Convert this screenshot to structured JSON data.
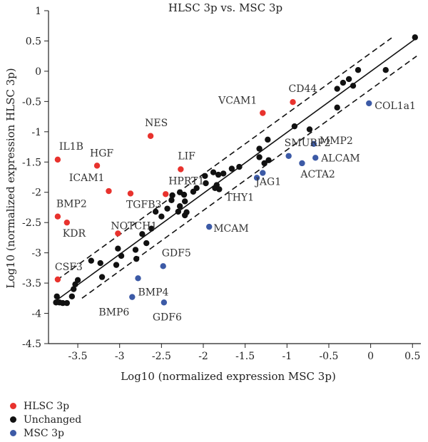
{
  "chart_data": {
    "type": "scatter",
    "title": "HLSC 3p vs. MSC 3p",
    "xlabel": "Log10 (normalized expression MSC 3p)",
    "ylabel": "Log10 (normalized expression HLSC 3p)",
    "xlim": [
      -3.85,
      0.6
    ],
    "ylim": [
      -4.5,
      1
    ],
    "x_ticks": [
      "-3.5",
      "-3",
      "-2.5",
      "-2",
      "-1.5",
      "-1",
      "-0.5",
      "0",
      "0.5"
    ],
    "x_tick_values": [
      -3.5,
      -3,
      -2.5,
      -2,
      -1.5,
      -1,
      -0.5,
      0,
      0.5
    ],
    "y_ticks": [
      "1",
      "0.5",
      "0",
      "-0.5",
      "-1",
      "-1.5",
      "-2",
      "-2.5",
      "-3",
      "-3.5",
      "-4",
      "-4.5"
    ],
    "y_tick_values": [
      1,
      0.5,
      0,
      -0.5,
      -1,
      -1.5,
      -2,
      -2.5,
      -3,
      -3.5,
      -4,
      -4.5
    ],
    "reference_lines": [
      {
        "style": "solid",
        "from": [
          -3.75,
          -3.78
        ],
        "to": [
          0.55,
          0.55
        ]
      },
      {
        "style": "dashed",
        "from": [
          -3.75,
          -3.45
        ],
        "to": [
          0.25,
          0.55
        ]
      },
      {
        "style": "dashed",
        "from": [
          -3.45,
          -3.75
        ],
        "to": [
          0.55,
          0.25
        ]
      }
    ],
    "colors": {
      "HLSC 3p": "#e8322d",
      "Unchanged": "#111111",
      "MSC 3p": "#3c5aa6"
    },
    "series": [
      {
        "name": "HLSC 3p",
        "points": [
          {
            "x": -3.74,
            "y": -1.46,
            "label": "IL1B"
          },
          {
            "x": -3.27,
            "y": -1.56,
            "label": "HGF"
          },
          {
            "x": -2.63,
            "y": -1.07,
            "label": "NES"
          },
          {
            "x": -3.13,
            "y": -1.98,
            "label": "ICAM1"
          },
          {
            "x": -2.87,
            "y": -2.02,
            "label": "TGFB3"
          },
          {
            "x": -2.27,
            "y": -1.62,
            "label": "LIF"
          },
          {
            "x": -2.45,
            "y": -2.03,
            "label": "HPRT1"
          },
          {
            "x": -3.74,
            "y": -2.4,
            "label": "BMP2"
          },
          {
            "x": -3.63,
            "y": -2.5,
            "label": "KDR"
          },
          {
            "x": -3.02,
            "y": -2.68,
            "label": "NOTCH1"
          },
          {
            "x": -3.74,
            "y": -3.44,
            "label": "CSF3"
          },
          {
            "x": -1.29,
            "y": -0.69,
            "label": "VCAM1"
          },
          {
            "x": -0.93,
            "y": -0.51,
            "label": "CD44"
          }
        ]
      },
      {
        "name": "MSC 3p",
        "points": [
          {
            "x": -0.02,
            "y": -0.53,
            "label": "COL1a1"
          },
          {
            "x": -0.68,
            "y": -1.2,
            "label": "MMP2"
          },
          {
            "x": -0.66,
            "y": -1.43,
            "label": "ALCAM"
          },
          {
            "x": -0.98,
            "y": -1.4,
            "label": "SMURF2"
          },
          {
            "x": -0.82,
            "y": -1.52,
            "label": "ACTA2"
          },
          {
            "x": -1.29,
            "y": -1.68,
            "label": "JAG1"
          },
          {
            "x": -1.36,
            "y": -1.76,
            "label": "THY1"
          },
          {
            "x": -1.93,
            "y": -2.57,
            "label": "MCAM"
          },
          {
            "x": -2.48,
            "y": -3.22,
            "label": "GDF5"
          },
          {
            "x": -2.78,
            "y": -3.42,
            "label": "BMP4"
          },
          {
            "x": -2.85,
            "y": -3.73,
            "label": "BMP6"
          },
          {
            "x": -2.47,
            "y": -3.82,
            "label": "GDF6"
          }
        ]
      },
      {
        "name": "Unchanged",
        "points": [
          {
            "x": 0.53,
            "y": 0.56
          },
          {
            "x": 0.18,
            "y": 0.02
          },
          {
            "x": -0.15,
            "y": 0.02
          },
          {
            "x": -0.26,
            "y": -0.13
          },
          {
            "x": -0.4,
            "y": -0.29
          },
          {
            "x": -0.33,
            "y": -0.19
          },
          {
            "x": -0.21,
            "y": -0.24
          },
          {
            "x": -0.4,
            "y": -0.6
          },
          {
            "x": -0.73,
            "y": -0.96
          },
          {
            "x": -0.91,
            "y": -0.91
          },
          {
            "x": -1.23,
            "y": -1.13
          },
          {
            "x": -1.33,
            "y": -1.28
          },
          {
            "x": -1.22,
            "y": -1.47
          },
          {
            "x": -1.33,
            "y": -1.42
          },
          {
            "x": -1.27,
            "y": -1.52
          },
          {
            "x": -1.57,
            "y": -1.58
          },
          {
            "x": -1.66,
            "y": -1.61
          },
          {
            "x": -1.98,
            "y": -1.73
          },
          {
            "x": -1.88,
            "y": -1.67
          },
          {
            "x": -1.82,
            "y": -1.71
          },
          {
            "x": -1.76,
            "y": -1.69
          },
          {
            "x": -1.97,
            "y": -1.85
          },
          {
            "x": -1.84,
            "y": -1.88
          },
          {
            "x": -1.81,
            "y": -1.95
          },
          {
            "x": -1.86,
            "y": -1.93
          },
          {
            "x": -2.08,
            "y": -1.93
          },
          {
            "x": -2.12,
            "y": -1.99
          },
          {
            "x": -2.28,
            "y": -2.0
          },
          {
            "x": -2.23,
            "y": -2.04
          },
          {
            "x": -2.37,
            "y": -2.05
          },
          {
            "x": -2.38,
            "y": -2.13
          },
          {
            "x": -2.22,
            "y": -2.15
          },
          {
            "x": -2.28,
            "y": -2.23
          },
          {
            "x": -2.43,
            "y": -2.27
          },
          {
            "x": -2.3,
            "y": -2.32
          },
          {
            "x": -2.2,
            "y": -2.33
          },
          {
            "x": -2.22,
            "y": -2.38
          },
          {
            "x": -2.5,
            "y": -2.4
          },
          {
            "x": -2.57,
            "y": -2.32
          },
          {
            "x": -2.62,
            "y": -2.6
          },
          {
            "x": -2.73,
            "y": -2.69
          },
          {
            "x": -2.68,
            "y": -2.84
          },
          {
            "x": -3.02,
            "y": -2.93
          },
          {
            "x": -2.98,
            "y": -3.05
          },
          {
            "x": -2.81,
            "y": -2.95
          },
          {
            "x": -3.23,
            "y": -3.17
          },
          {
            "x": -3.04,
            "y": -3.2
          },
          {
            "x": -3.34,
            "y": -3.13
          },
          {
            "x": -3.21,
            "y": -3.4
          },
          {
            "x": -3.5,
            "y": -3.45
          },
          {
            "x": -3.53,
            "y": -3.52
          },
          {
            "x": -3.55,
            "y": -3.6
          },
          {
            "x": -3.57,
            "y": -3.72
          },
          {
            "x": -3.75,
            "y": -3.72
          },
          {
            "x": -3.76,
            "y": -3.82
          },
          {
            "x": -3.72,
            "y": -3.82
          },
          {
            "x": -3.68,
            "y": -3.83
          },
          {
            "x": -3.63,
            "y": -3.83
          },
          {
            "x": -2.8,
            "y": -3.1
          }
        ]
      }
    ],
    "legend": {
      "position": "bottom-left",
      "items": [
        "HLSC 3p",
        "Unchanged",
        "MSC 3p"
      ]
    }
  }
}
